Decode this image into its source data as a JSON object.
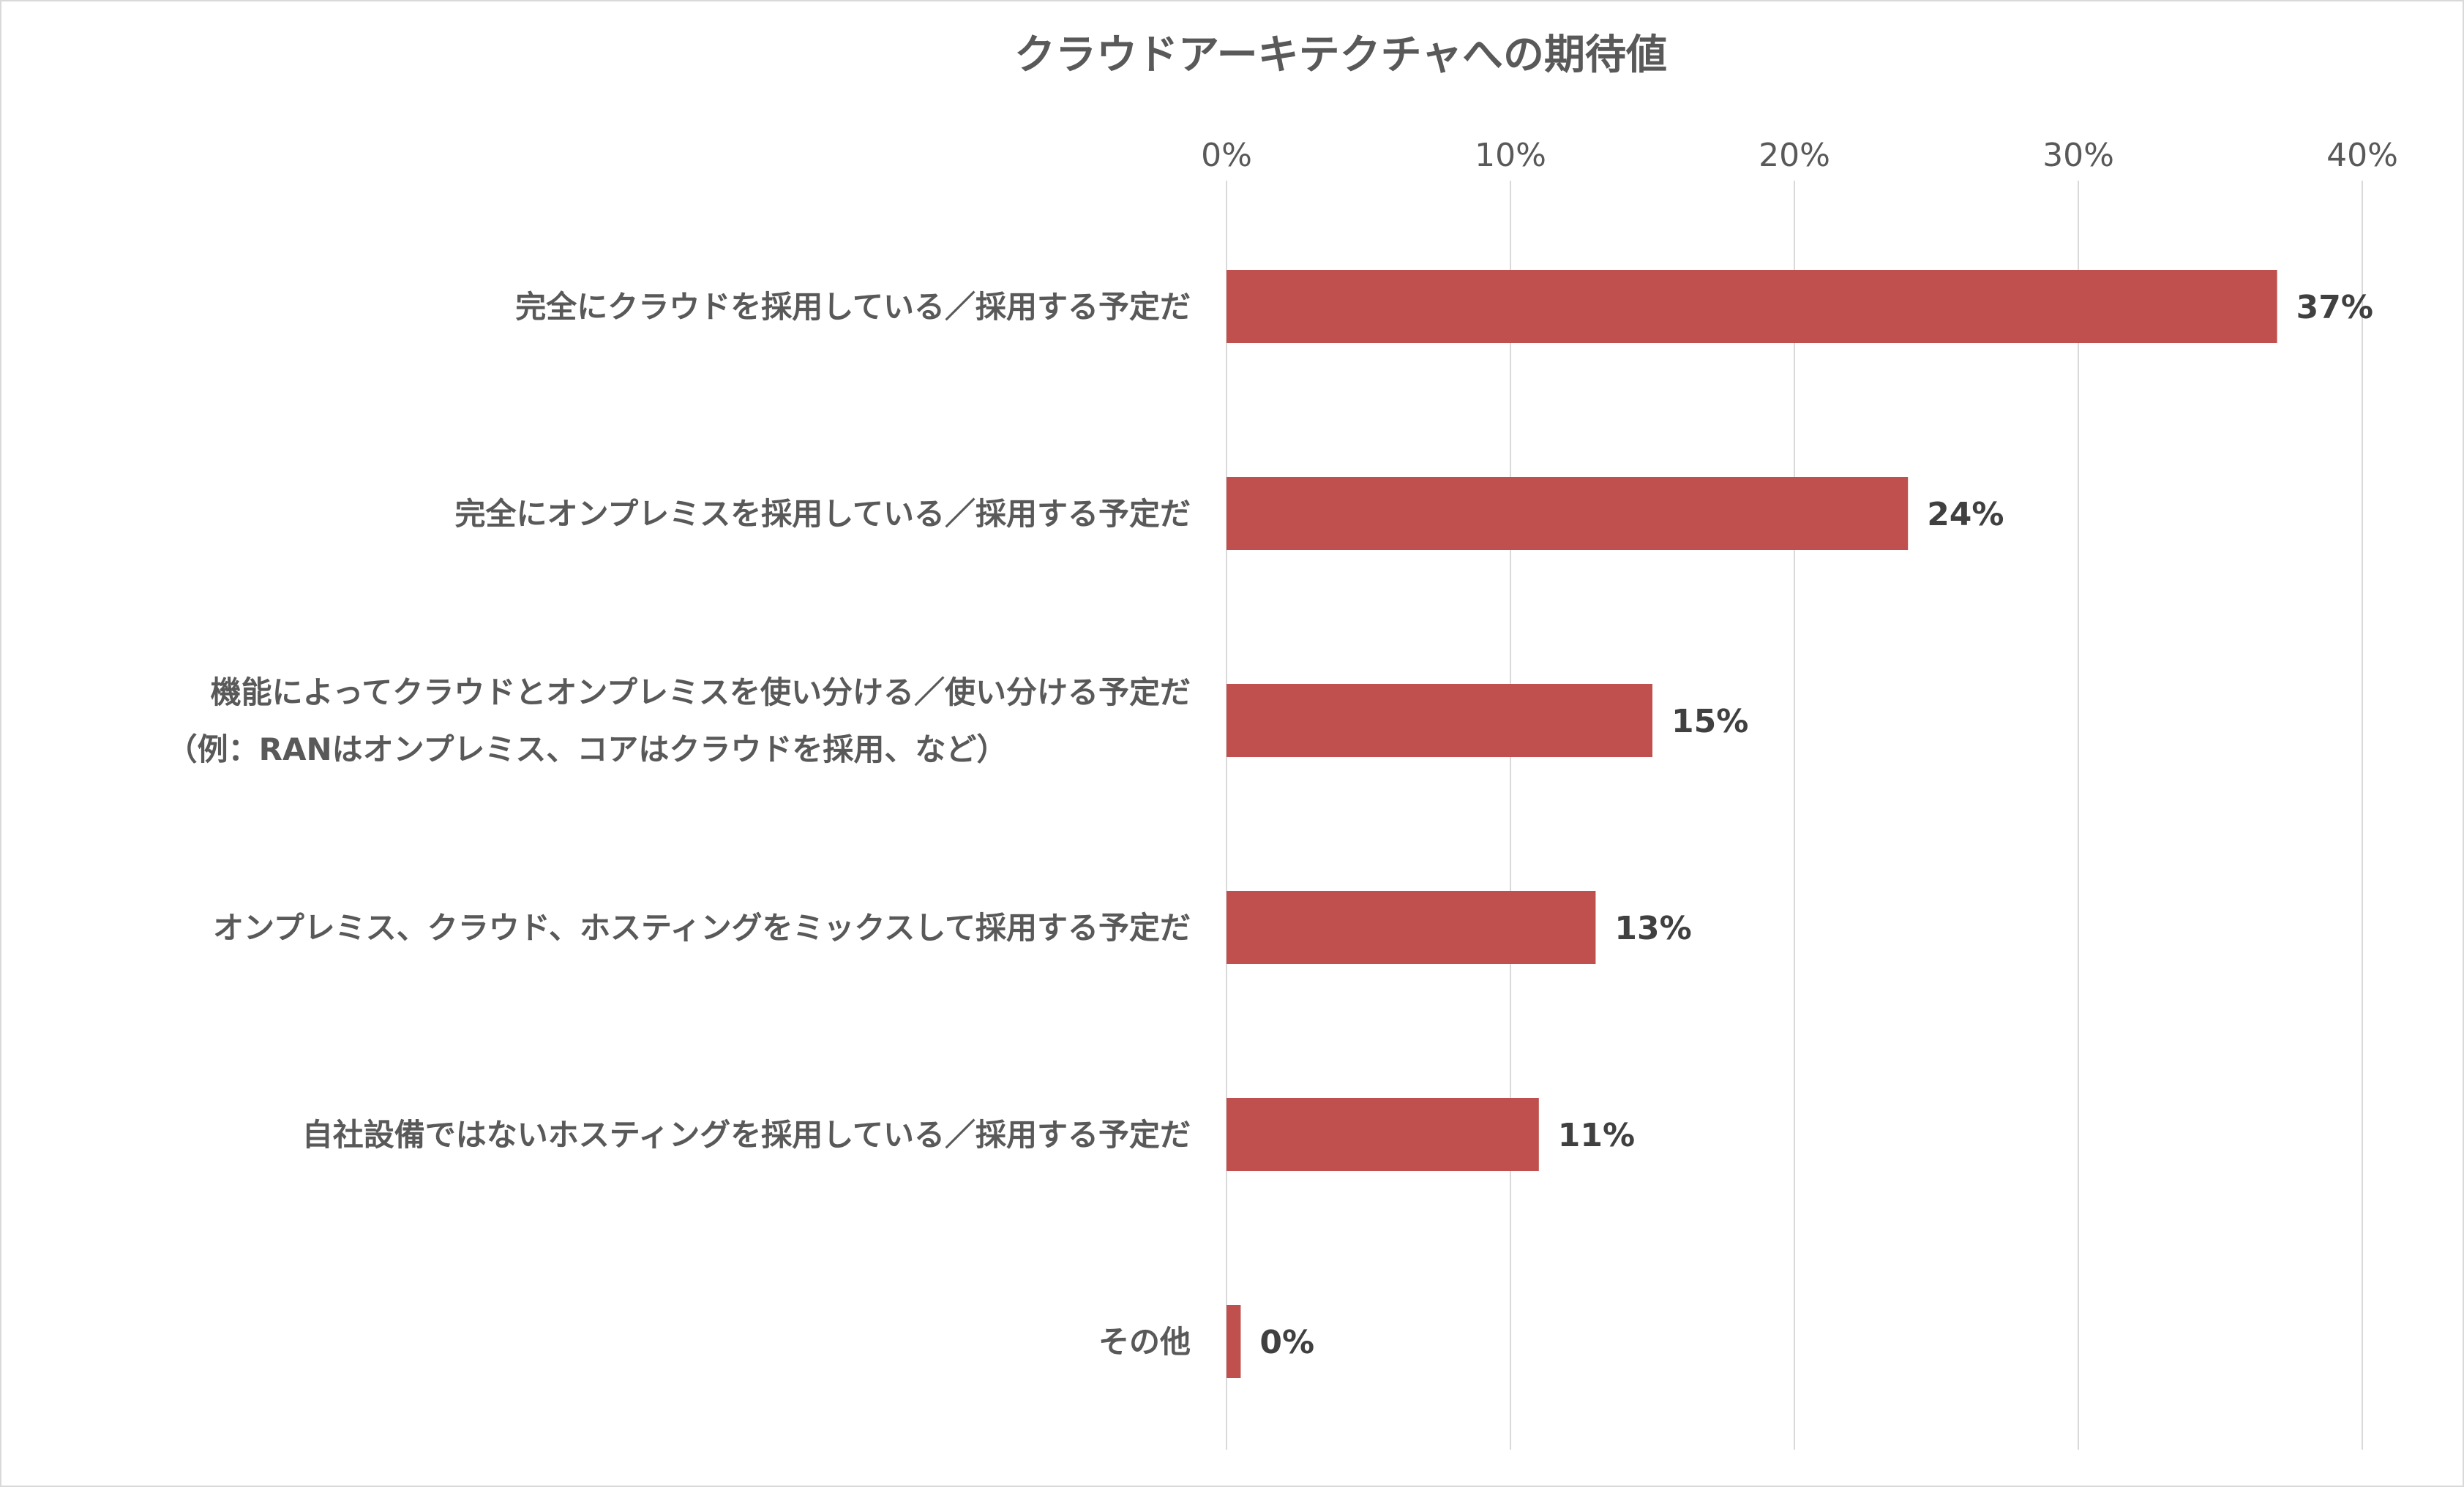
{
  "chart_data": {
    "type": "bar",
    "orientation": "horizontal",
    "title": "クラウドアーキテクチャへの期待値",
    "categories": [
      [
        "完全にクラウドを採用している／採用する予定だ"
      ],
      [
        "完全にオンプレミスを採用している／採用する予定だ"
      ],
      [
        "機能によってクラウドとオンプレミスを使い分ける／使い分ける予定だ",
        "（例：RANはオンプレミス、コアはクラウドを採用、など）"
      ],
      [
        "オンプレミス、クラウド、ホスティングをミックスして採用する予定だ"
      ],
      [
        "自社設備ではないホスティングを採用している／採用する予定だ"
      ],
      [
        "その他"
      ]
    ],
    "values": [
      37,
      24,
      15,
      13,
      11,
      0.5
    ],
    "value_labels": [
      "37%",
      "24%",
      "15%",
      "13%",
      "11%",
      "0%"
    ],
    "xlim": [
      0,
      40
    ],
    "ticks": [
      0,
      10,
      20,
      30,
      40
    ],
    "tick_labels": [
      "0%",
      "10%",
      "20%",
      "30%",
      "40%"
    ],
    "xaxis_position": "top",
    "grid": true,
    "legend": "none",
    "colors": {
      "bar": "#C0504D",
      "grid": "#D9D9D9",
      "text": "#595959",
      "value_text": "#404040",
      "border": "#D9D9D9"
    }
  }
}
